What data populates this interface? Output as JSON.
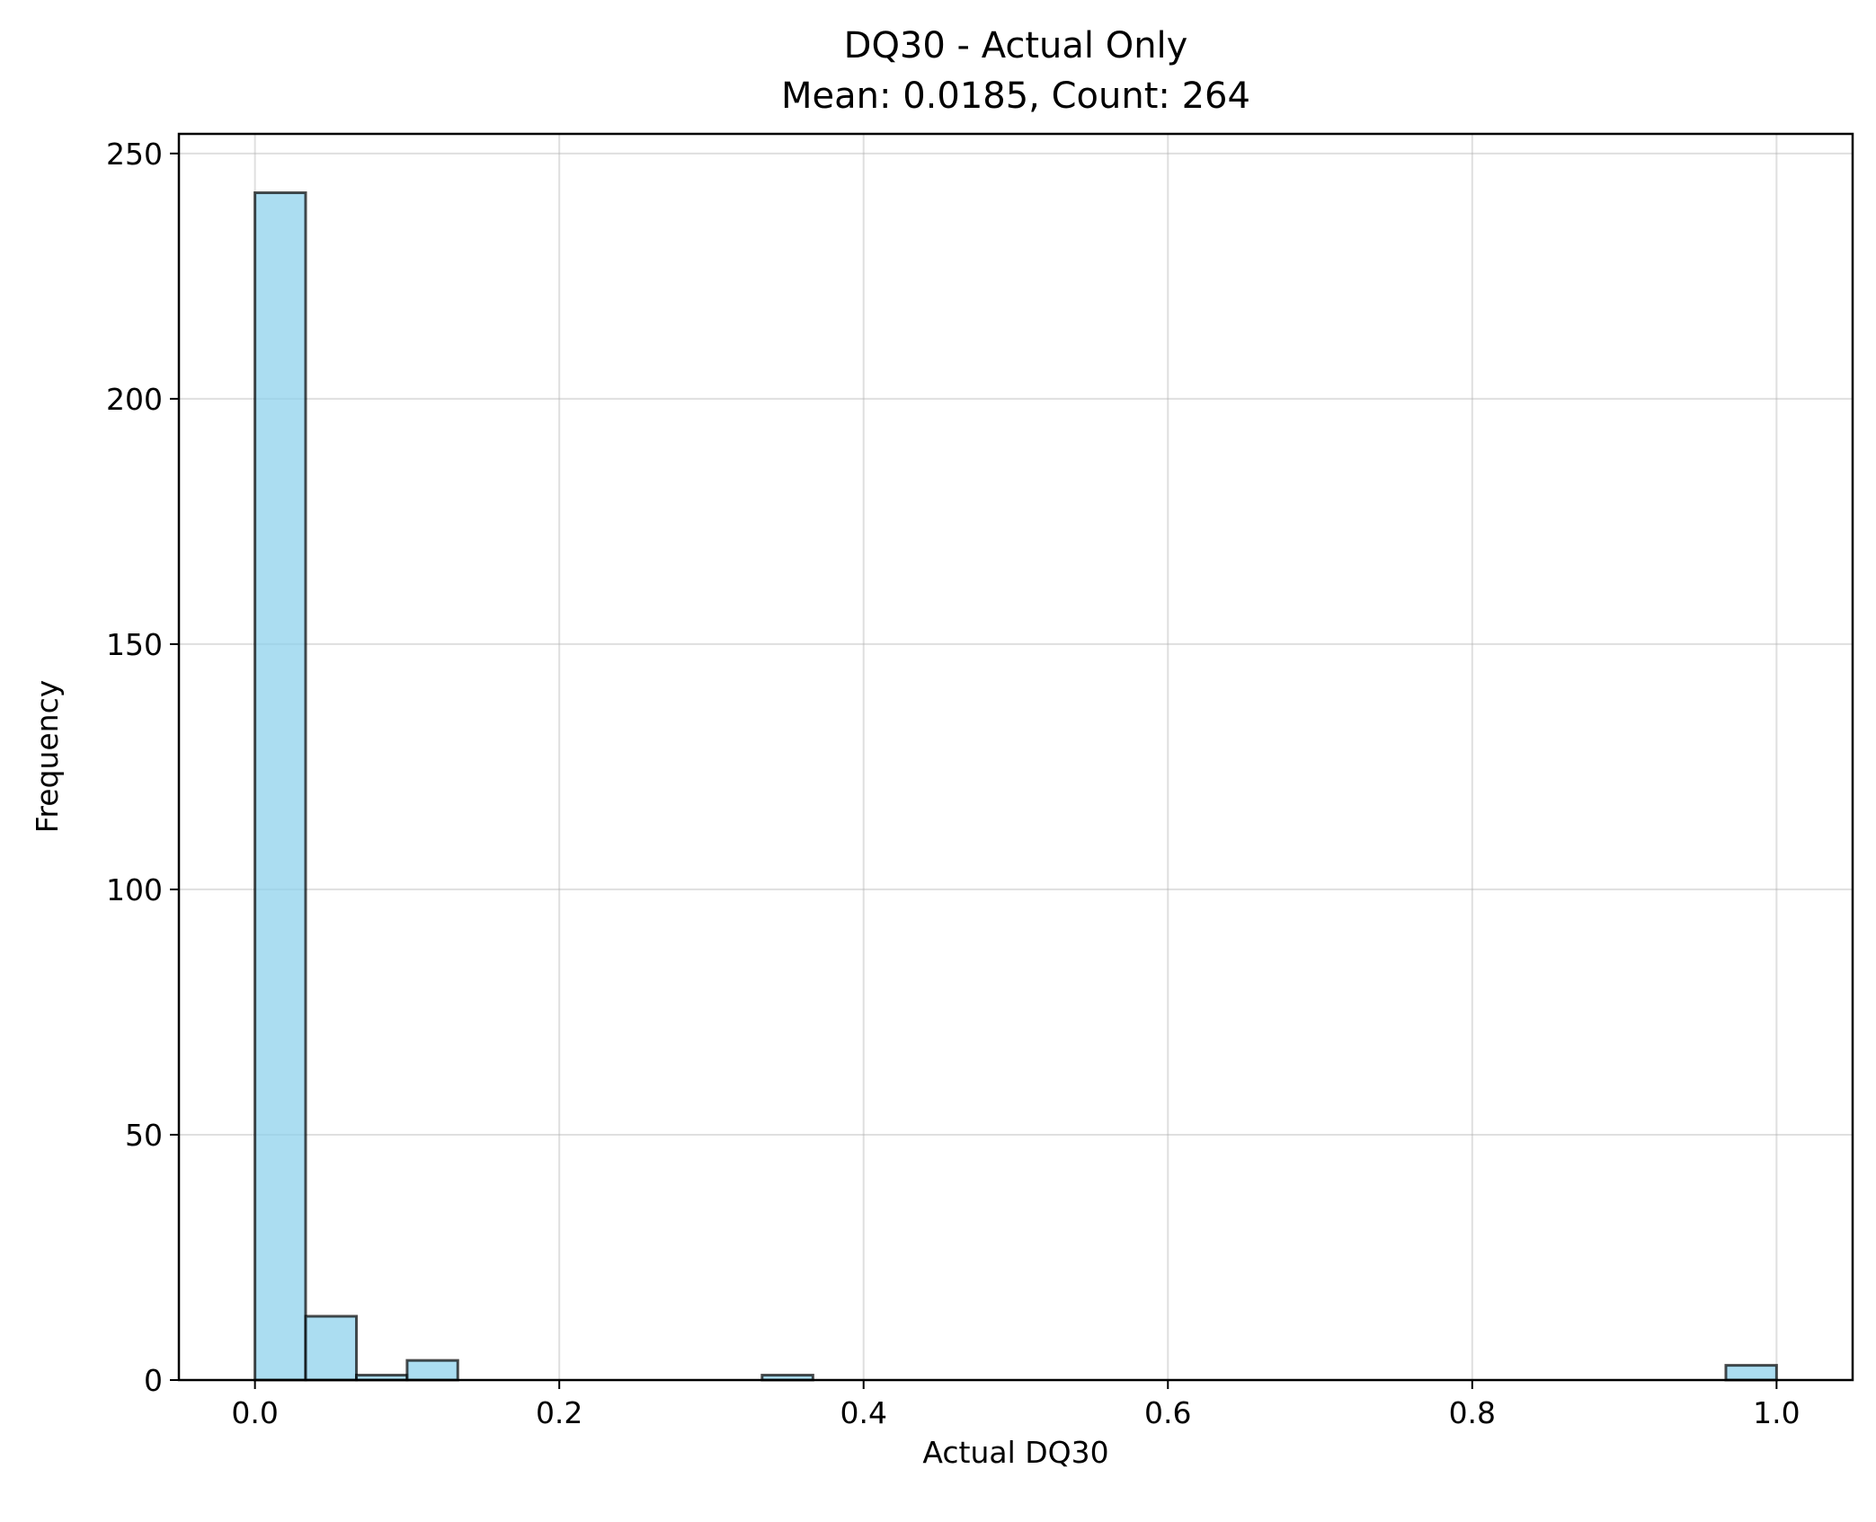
{
  "chart_data": {
    "type": "bar",
    "title": "DQ30 - Actual Only",
    "subtitle": "Mean: 0.0185, Count: 264",
    "xlabel": "Actual DQ30",
    "ylabel": "Frequency",
    "xlim": [
      -0.05,
      1.05
    ],
    "ylim": [
      0,
      254
    ],
    "x_ticks": [
      0.0,
      0.2,
      0.4,
      0.6,
      0.8,
      1.0
    ],
    "x_tick_labels": [
      "0.0",
      "0.2",
      "0.4",
      "0.6",
      "0.8",
      "1.0"
    ],
    "y_ticks": [
      0,
      50,
      100,
      150,
      200,
      250
    ],
    "y_tick_labels": [
      "0",
      "50",
      "100",
      "150",
      "200",
      "250"
    ],
    "grid": true,
    "bar_fill": "#87CEEB",
    "bar_edge": "#000000",
    "bins": [
      {
        "x0": 0.0,
        "x1": 0.0333,
        "count": 242
      },
      {
        "x0": 0.0333,
        "x1": 0.0667,
        "count": 13
      },
      {
        "x0": 0.0667,
        "x1": 0.1,
        "count": 1
      },
      {
        "x0": 0.1,
        "x1": 0.1333,
        "count": 4
      },
      {
        "x0": 0.3333,
        "x1": 0.3667,
        "count": 1
      },
      {
        "x0": 0.9667,
        "x1": 1.0,
        "count": 3
      }
    ]
  }
}
